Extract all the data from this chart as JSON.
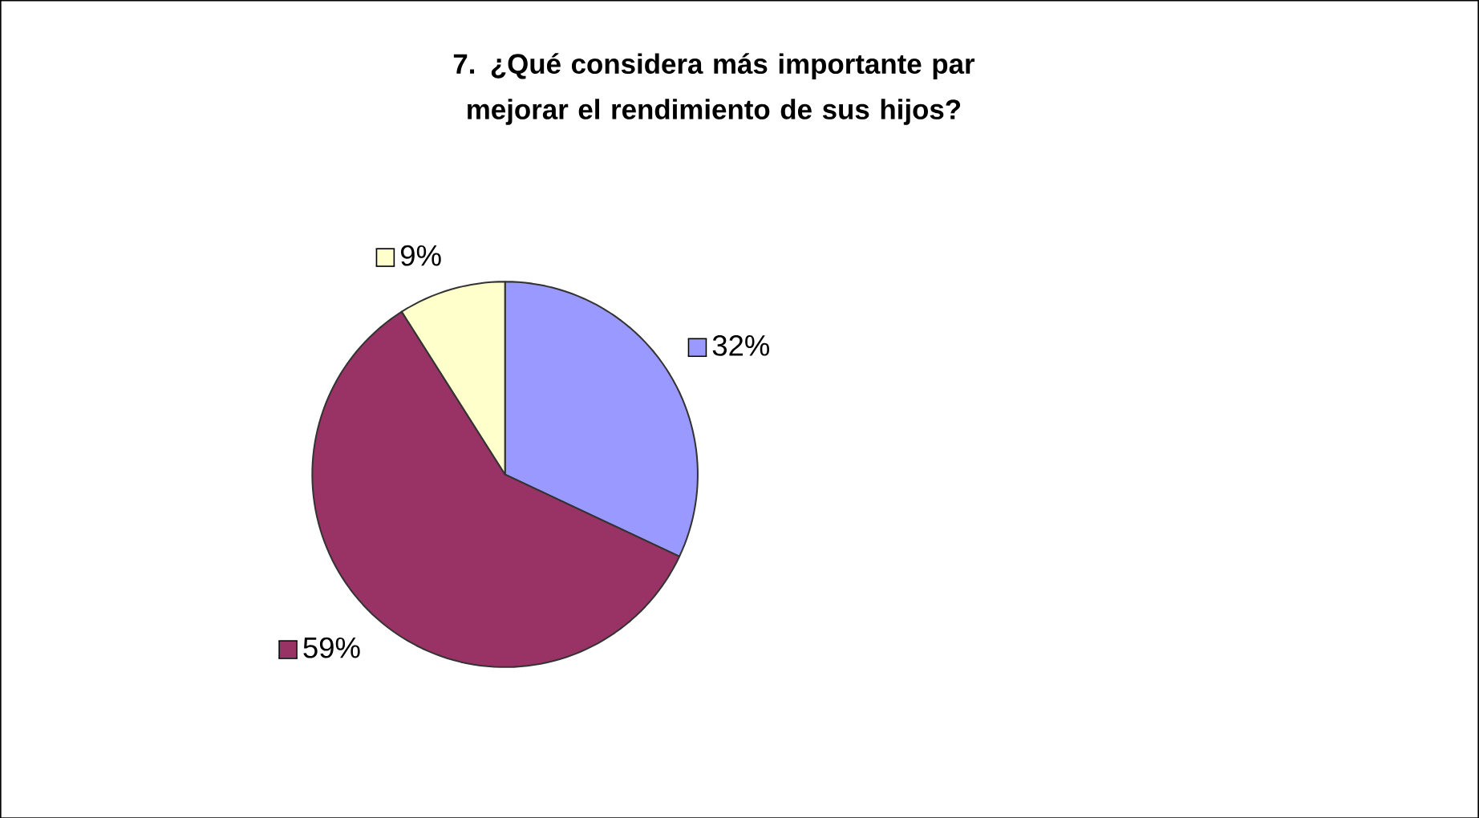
{
  "chart_data": {
    "type": "pie",
    "title": "7. ¿Qué considera más importante par mejorar el rendimiento de sus hijos?",
    "categories": [
      null,
      null,
      null
    ],
    "values": [
      32,
      59,
      9
    ],
    "value_labels": [
      "32%",
      "59%",
      "9%"
    ],
    "colors": [
      "#9999ff",
      "#993366",
      "#ffffcc"
    ]
  }
}
